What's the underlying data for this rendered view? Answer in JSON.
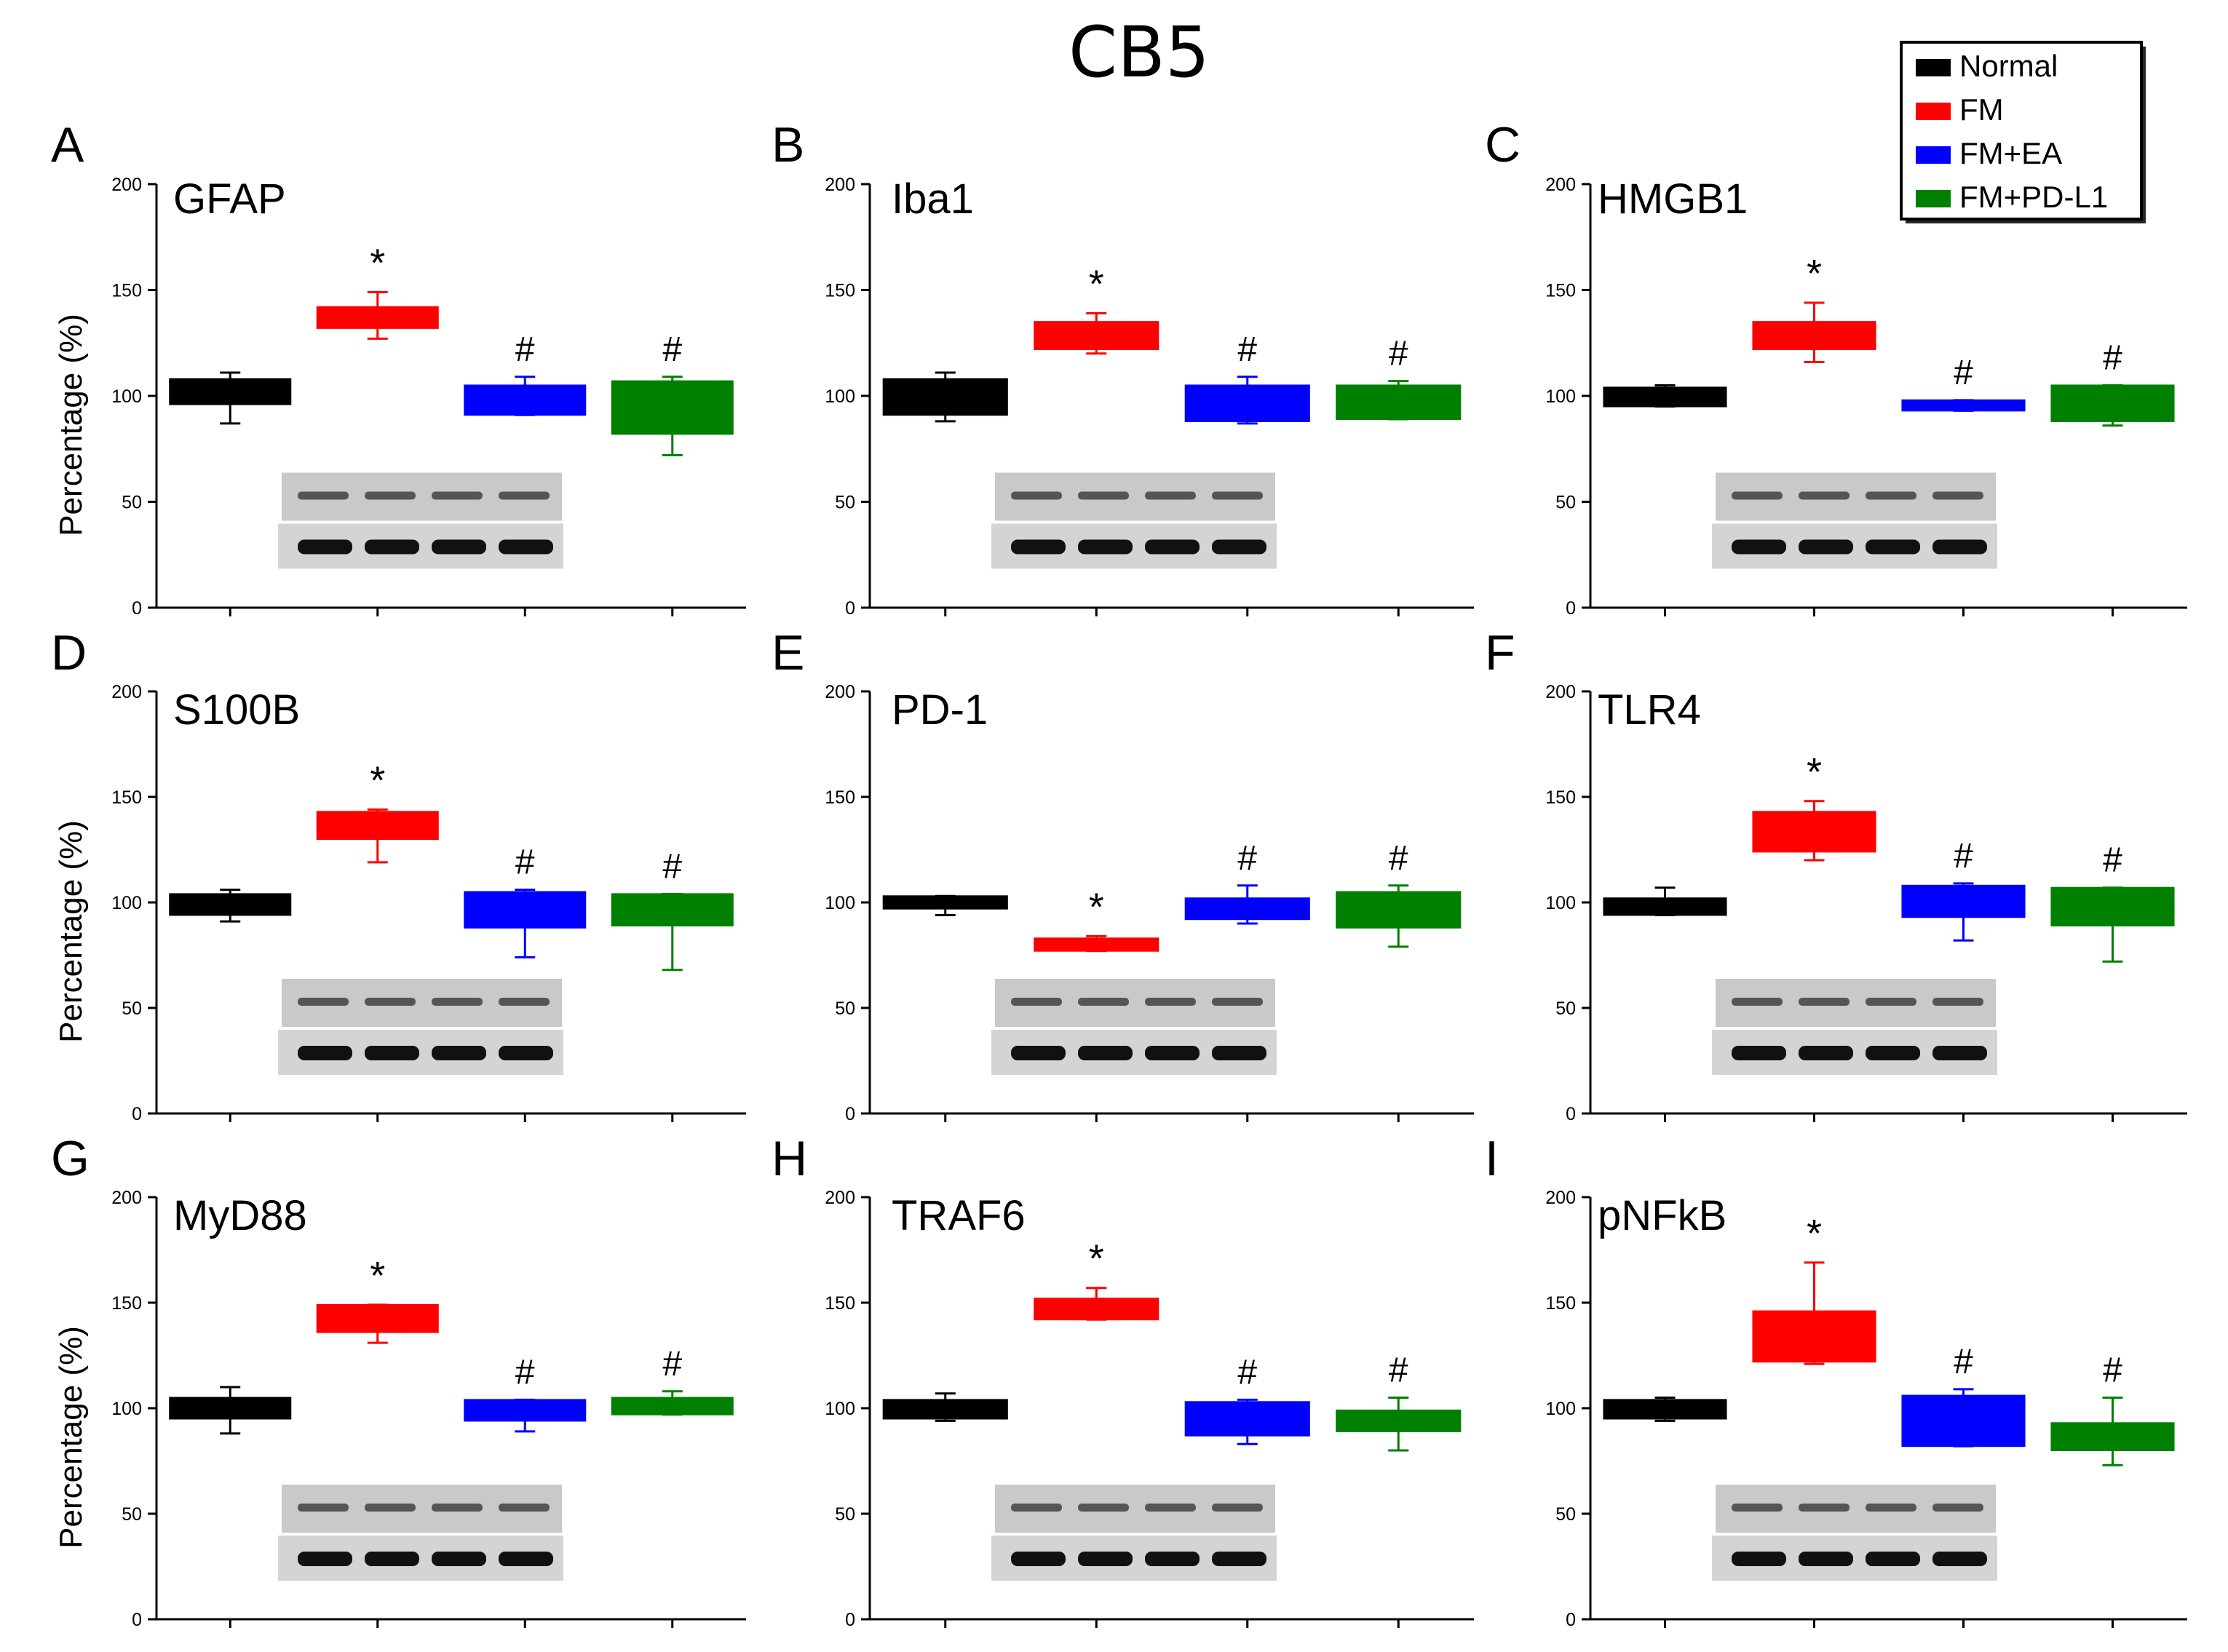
{
  "figure_title": "CB5",
  "ylabel": "Percentage (%)",
  "legend": [
    {
      "label": "Normal",
      "color": "#000000"
    },
    {
      "label": "FM",
      "color": "#ff0000"
    },
    {
      "label": "FM+EA",
      "color": "#0000ff"
    },
    {
      "label": "FM+PD-L1",
      "color": "#008000"
    }
  ],
  "colors": {
    "normal": "#000000",
    "fm": "#ff0000",
    "fm_ea": "#0000ff",
    "fm_pdl1": "#008000"
  },
  "chart_data": [
    {
      "type": "box",
      "panel": "A",
      "title": "GFAP",
      "ylim": [
        0,
        200
      ],
      "yticks": [
        0,
        50,
        100,
        150,
        200
      ],
      "series": [
        {
          "name": "Normal",
          "q1": 96,
          "q3": 108,
          "whisker_low": 87,
          "whisker_high": 111,
          "mark": ""
        },
        {
          "name": "FM",
          "q1": 132,
          "q3": 142,
          "whisker_low": 127,
          "whisker_high": 149,
          "mark": "*"
        },
        {
          "name": "FM+EA",
          "q1": 91,
          "q3": 105,
          "whisker_low": 91,
          "whisker_high": 109,
          "mark": "#"
        },
        {
          "name": "FM+PD-L1",
          "q1": 82,
          "q3": 107,
          "whisker_low": 72,
          "whisker_high": 109,
          "mark": "#"
        }
      ]
    },
    {
      "type": "box",
      "panel": "B",
      "title": "Iba1",
      "ylim": [
        0,
        200
      ],
      "yticks": [
        0,
        50,
        100,
        150,
        200
      ],
      "series": [
        {
          "name": "Normal",
          "q1": 91,
          "q3": 108,
          "whisker_low": 88,
          "whisker_high": 111,
          "mark": ""
        },
        {
          "name": "FM",
          "q1": 122,
          "q3": 135,
          "whisker_low": 120,
          "whisker_high": 139,
          "mark": "*"
        },
        {
          "name": "FM+EA",
          "q1": 88,
          "q3": 105,
          "whisker_low": 87,
          "whisker_high": 109,
          "mark": "#"
        },
        {
          "name": "FM+PD-L1",
          "q1": 89,
          "q3": 105,
          "whisker_low": 89,
          "whisker_high": 107,
          "mark": "#"
        }
      ]
    },
    {
      "type": "box",
      "panel": "C",
      "title": "HMGB1",
      "ylim": [
        0,
        200
      ],
      "yticks": [
        0,
        50,
        100,
        150,
        200
      ],
      "series": [
        {
          "name": "Normal",
          "q1": 95,
          "q3": 104,
          "whisker_low": 95,
          "whisker_high": 105,
          "mark": ""
        },
        {
          "name": "FM",
          "q1": 122,
          "q3": 135,
          "whisker_low": 116,
          "whisker_high": 144,
          "mark": "*"
        },
        {
          "name": "FM+EA",
          "q1": 93,
          "q3": 98,
          "whisker_low": 93,
          "whisker_high": 98,
          "mark": "#"
        },
        {
          "name": "FM+PD-L1",
          "q1": 88,
          "q3": 105,
          "whisker_low": 86,
          "whisker_high": 105,
          "mark": "#"
        }
      ]
    },
    {
      "type": "box",
      "panel": "D",
      "title": "S100B",
      "ylim": [
        0,
        200
      ],
      "yticks": [
        0,
        50,
        100,
        150,
        200
      ],
      "series": [
        {
          "name": "Normal",
          "q1": 94,
          "q3": 104,
          "whisker_low": 91,
          "whisker_high": 106,
          "mark": ""
        },
        {
          "name": "FM",
          "q1": 130,
          "q3": 143,
          "whisker_low": 119,
          "whisker_high": 144,
          "mark": "*"
        },
        {
          "name": "FM+EA",
          "q1": 88,
          "q3": 105,
          "whisker_low": 74,
          "whisker_high": 106,
          "mark": "#"
        },
        {
          "name": "FM+PD-L1",
          "q1": 89,
          "q3": 104,
          "whisker_low": 68,
          "whisker_high": 104,
          "mark": "#"
        }
      ]
    },
    {
      "type": "box",
      "panel": "E",
      "title": "PD-1",
      "ylim": [
        0,
        200
      ],
      "yticks": [
        0,
        50,
        100,
        150,
        200
      ],
      "series": [
        {
          "name": "Normal",
          "q1": 97,
          "q3": 103,
          "whisker_low": 94,
          "whisker_high": 103,
          "mark": ""
        },
        {
          "name": "FM",
          "q1": 77,
          "q3": 83,
          "whisker_low": 77,
          "whisker_high": 84,
          "mark": "*"
        },
        {
          "name": "FM+EA",
          "q1": 92,
          "q3": 102,
          "whisker_low": 90,
          "whisker_high": 108,
          "mark": "#"
        },
        {
          "name": "FM+PD-L1",
          "q1": 88,
          "q3": 105,
          "whisker_low": 79,
          "whisker_high": 108,
          "mark": "#"
        }
      ]
    },
    {
      "type": "box",
      "panel": "F",
      "title": "TLR4",
      "ylim": [
        0,
        200
      ],
      "yticks": [
        0,
        50,
        100,
        150,
        200
      ],
      "series": [
        {
          "name": "Normal",
          "q1": 94,
          "q3": 102,
          "whisker_low": 94,
          "whisker_high": 107,
          "mark": ""
        },
        {
          "name": "FM",
          "q1": 124,
          "q3": 143,
          "whisker_low": 120,
          "whisker_high": 148,
          "mark": "*"
        },
        {
          "name": "FM+EA",
          "q1": 93,
          "q3": 108,
          "whisker_low": 82,
          "whisker_high": 109,
          "mark": "#"
        },
        {
          "name": "FM+PD-L1",
          "q1": 89,
          "q3": 107,
          "whisker_low": 72,
          "whisker_high": 107,
          "mark": "#"
        }
      ]
    },
    {
      "type": "box",
      "panel": "G",
      "title": "MyD88",
      "ylim": [
        0,
        200
      ],
      "yticks": [
        0,
        50,
        100,
        150,
        200
      ],
      "series": [
        {
          "name": "Normal",
          "q1": 95,
          "q3": 105,
          "whisker_low": 88,
          "whisker_high": 110,
          "mark": ""
        },
        {
          "name": "FM",
          "q1": 136,
          "q3": 149,
          "whisker_low": 131,
          "whisker_high": 149,
          "mark": "*"
        },
        {
          "name": "FM+EA",
          "q1": 94,
          "q3": 104,
          "whisker_low": 89,
          "whisker_high": 104,
          "mark": "#"
        },
        {
          "name": "FM+PD-L1",
          "q1": 97,
          "q3": 105,
          "whisker_low": 97,
          "whisker_high": 108,
          "mark": "#"
        }
      ]
    },
    {
      "type": "box",
      "panel": "H",
      "title": "TRAF6",
      "ylim": [
        0,
        200
      ],
      "yticks": [
        0,
        50,
        100,
        150,
        200
      ],
      "series": [
        {
          "name": "Normal",
          "q1": 95,
          "q3": 104,
          "whisker_low": 94,
          "whisker_high": 107,
          "mark": ""
        },
        {
          "name": "FM",
          "q1": 142,
          "q3": 152,
          "whisker_low": 142,
          "whisker_high": 157,
          "mark": "*"
        },
        {
          "name": "FM+EA",
          "q1": 87,
          "q3": 103,
          "whisker_low": 83,
          "whisker_high": 104,
          "mark": "#"
        },
        {
          "name": "FM+PD-L1",
          "q1": 89,
          "q3": 99,
          "whisker_low": 80,
          "whisker_high": 105,
          "mark": "#"
        }
      ]
    },
    {
      "type": "box",
      "panel": "I",
      "title": "pNFkB",
      "ylim": [
        0,
        200
      ],
      "yticks": [
        0,
        50,
        100,
        150,
        200
      ],
      "series": [
        {
          "name": "Normal",
          "q1": 95,
          "q3": 104,
          "whisker_low": 94,
          "whisker_high": 105,
          "mark": ""
        },
        {
          "name": "FM",
          "q1": 122,
          "q3": 146,
          "whisker_low": 121,
          "whisker_high": 169,
          "mark": "*"
        },
        {
          "name": "FM+EA",
          "q1": 82,
          "q3": 106,
          "whisker_low": 82,
          "whisker_high": 109,
          "mark": "#"
        },
        {
          "name": "FM+PD-L1",
          "q1": 80,
          "q3": 93,
          "whisker_low": 73,
          "whisker_high": 105,
          "mark": "#"
        }
      ]
    }
  ]
}
